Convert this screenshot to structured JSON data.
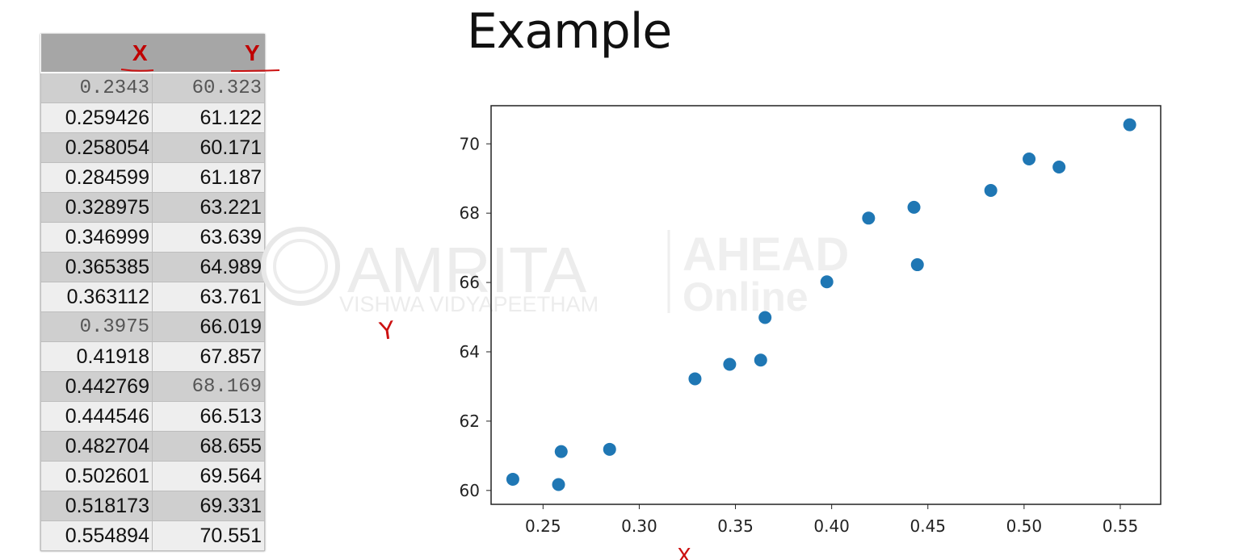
{
  "slide": {
    "title": "Example"
  },
  "table": {
    "headers": [
      "X",
      "Y"
    ],
    "rows": [
      {
        "x": "0.2343",
        "y": "60.323"
      },
      {
        "x": "0.259426",
        "y": "61.122"
      },
      {
        "x": "0.258054",
        "y": "60.171"
      },
      {
        "x": "0.284599",
        "y": "61.187"
      },
      {
        "x": "0.328975",
        "y": "63.221"
      },
      {
        "x": "0.346999",
        "y": "63.639"
      },
      {
        "x": "0.365385",
        "y": "64.989"
      },
      {
        "x": "0.363112",
        "y": "63.761"
      },
      {
        "x": "0.3975",
        "y": "66.019"
      },
      {
        "x": "0.41918",
        "y": "67.857"
      },
      {
        "x": "0.442769",
        "y": "68.169"
      },
      {
        "x": "0.444546",
        "y": "66.513"
      },
      {
        "x": "0.482704",
        "y": "68.655"
      },
      {
        "x": "0.502601",
        "y": "69.564"
      },
      {
        "x": "0.518173",
        "y": "69.331"
      },
      {
        "x": "0.554894",
        "y": "70.551"
      }
    ]
  },
  "watermark": {
    "brand": "AMRITA",
    "tagline": "VISHWA VIDYAPEETHAM",
    "partner": "AHEAD",
    "partner_sub": "Online"
  },
  "annotations": {
    "y_mark": "Y",
    "x_mark": "X"
  },
  "colors": {
    "point": "#1f77b4",
    "header_text": "#c00000",
    "ink": "#cc1111"
  },
  "chart_data": {
    "type": "scatter",
    "title": "",
    "xlabel": "",
    "ylabel": "",
    "xlim": [
      0.223,
      0.571
    ],
    "ylim": [
      59.6,
      71.1
    ],
    "xticks": [
      "0.25",
      "0.30",
      "0.35",
      "0.40",
      "0.45",
      "0.50",
      "0.55"
    ],
    "yticks": [
      "60",
      "62",
      "64",
      "66",
      "68",
      "70"
    ],
    "grid": false,
    "x": [
      0.2343,
      0.259426,
      0.258054,
      0.284599,
      0.328975,
      0.346999,
      0.365385,
      0.363112,
      0.3975,
      0.41918,
      0.442769,
      0.444546,
      0.482704,
      0.502601,
      0.518173,
      0.554894
    ],
    "y": [
      60.323,
      61.122,
      60.171,
      61.187,
      63.221,
      63.639,
      64.989,
      63.761,
      66.019,
      67.857,
      68.169,
      66.513,
      68.655,
      69.564,
      69.331,
      70.551
    ]
  }
}
